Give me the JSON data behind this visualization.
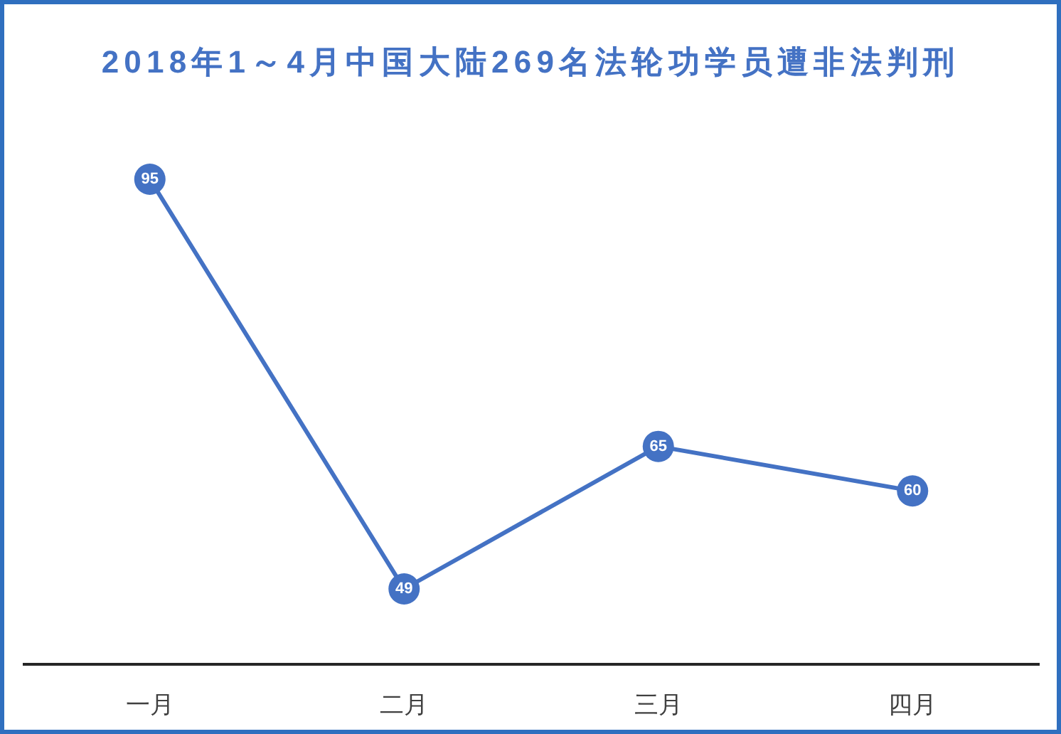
{
  "chart_data": {
    "type": "line",
    "title": "2018年1～4月中国大陆269名法轮功学员遭非法判刑",
    "categories": [
      "一月",
      "二月",
      "三月",
      "四月"
    ],
    "series": [
      {
        "color": "#4472c4",
        "values": [
          95,
          49,
          65,
          60
        ]
      }
    ],
    "tick_labels": "x",
    "grid": false,
    "legend": false,
    "marker": "circle",
    "line_style": "solid",
    "data_labels": true
  }
}
